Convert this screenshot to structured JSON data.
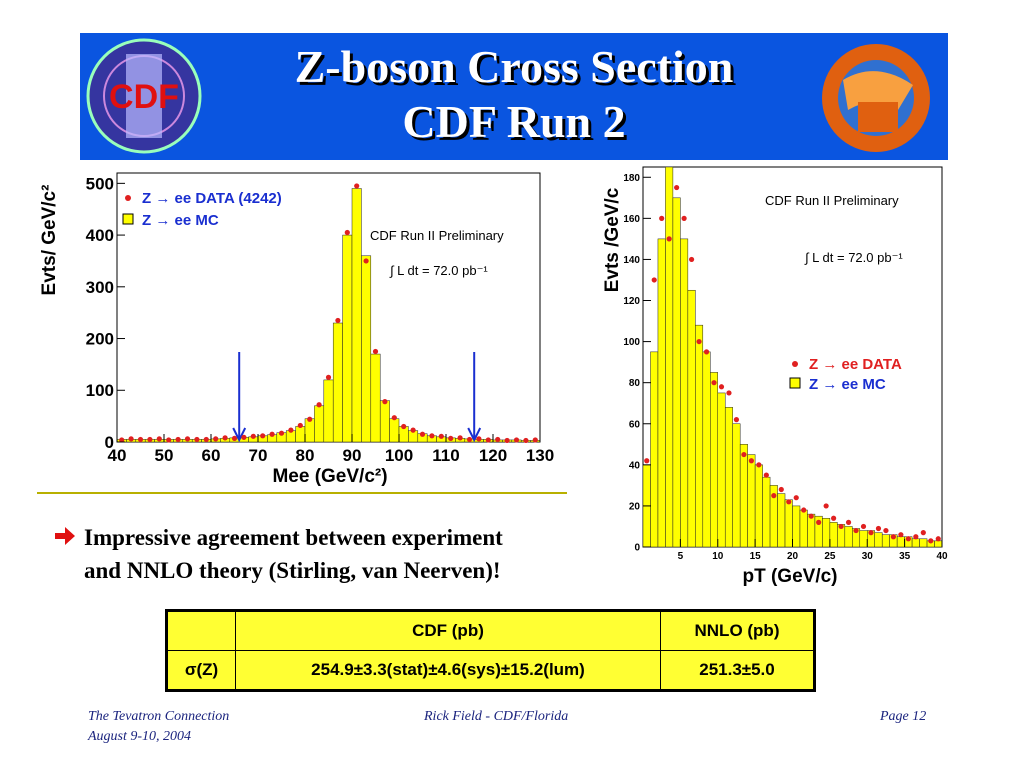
{
  "header": {
    "title_lines": [
      "Z-boson Cross Section",
      "CDF Run 2"
    ],
    "logo_text": "CDF"
  },
  "chart_data": [
    {
      "type": "histogram",
      "ylabel": "Evts/ GeV/c²",
      "xlabel": "Mee (GeV/c²)",
      "annotations": [
        "CDF Run II Preliminary",
        "∫ L dt = 72.0 pb⁻¹"
      ],
      "xlim": [
        40,
        130
      ],
      "ylim": [
        0,
        520
      ],
      "xticks": [
        40,
        50,
        60,
        70,
        80,
        90,
        100,
        110,
        120,
        130
      ],
      "yticks": [
        0,
        100,
        200,
        300,
        400,
        500
      ],
      "bins": [
        40,
        42,
        44,
        46,
        48,
        50,
        52,
        54,
        56,
        58,
        60,
        62,
        64,
        66,
        68,
        70,
        72,
        74,
        76,
        78,
        80,
        82,
        84,
        86,
        88,
        90,
        92,
        94,
        96,
        98,
        100,
        102,
        104,
        106,
        108,
        110,
        112,
        114,
        116,
        118,
        120,
        122,
        124,
        126,
        128,
        130
      ],
      "name": "Z → ee  MC",
      "color": "#ffff00",
      "counts": [
        5,
        5,
        5,
        5,
        5,
        5,
        5,
        5,
        5,
        5,
        6,
        7,
        8,
        9,
        10,
        12,
        14,
        18,
        22,
        30,
        45,
        70,
        120,
        230,
        400,
        490,
        360,
        170,
        80,
        45,
        30,
        22,
        16,
        12,
        10,
        8,
        7,
        6,
        5,
        5,
        4,
        4,
        4,
        3,
        3
      ],
      "points": {
        "name": "Z → ee DATA (4242)",
        "color": "#e02020",
        "values": [
          4,
          6,
          5,
          5,
          6,
          4,
          5,
          6,
          5,
          5,
          6,
          8,
          7,
          9,
          11,
          12,
          15,
          17,
          23,
          32,
          44,
          72,
          125,
          235,
          405,
          495,
          350,
          175,
          78,
          47,
          30,
          23,
          15,
          12,
          11,
          7,
          8,
          5,
          6,
          4,
          5,
          3,
          4,
          3,
          4
        ]
      },
      "cut_markers": [
        66,
        116
      ],
      "cut_color": "#1a2fd0"
    },
    {
      "type": "histogram",
      "ylabel": "Evts /GeV/c",
      "xlabel": "pT (GeV/c)",
      "annotations": [
        "CDF Run II Preliminary",
        "∫ L dt = 72.0 pb⁻¹"
      ],
      "xlim": [
        0,
        40
      ],
      "ylim": [
        0,
        185
      ],
      "xticks": [
        5,
        10,
        15,
        20,
        25,
        30,
        35,
        40
      ],
      "yticks": [
        0,
        20,
        40,
        60,
        80,
        100,
        120,
        140,
        160,
        180
      ],
      "bins": [
        0,
        1,
        2,
        3,
        4,
        5,
        6,
        7,
        8,
        9,
        10,
        11,
        12,
        13,
        14,
        15,
        16,
        17,
        18,
        19,
        20,
        21,
        22,
        23,
        24,
        25,
        26,
        27,
        28,
        29,
        30,
        31,
        32,
        33,
        34,
        35,
        36,
        37,
        38,
        39,
        40
      ],
      "name": "Z → ee  MC",
      "color": "#ffff00",
      "counts": [
        40,
        95,
        150,
        185,
        170,
        150,
        125,
        108,
        95,
        85,
        75,
        68,
        60,
        50,
        45,
        40,
        34,
        30,
        26,
        23,
        20,
        18,
        16,
        15,
        14,
        12,
        11,
        10,
        9,
        8,
        8,
        7,
        6,
        6,
        5,
        5,
        4,
        4,
        3,
        3
      ],
      "points": {
        "name": "Z → ee DATA",
        "color": "#e02020",
        "values": [
          42,
          130,
          160,
          150,
          175,
          160,
          140,
          100,
          95,
          80,
          78,
          75,
          62,
          45,
          42,
          40,
          35,
          25,
          28,
          22,
          24,
          18,
          15,
          12,
          20,
          14,
          10,
          12,
          8,
          10,
          7,
          9,
          8,
          5,
          6,
          4,
          5,
          7,
          3,
          4
        ]
      }
    }
  ],
  "bullet": [
    "Impressive agreement between experiment",
    "and NNLO theory (Stirling, van Neerven)!"
  ],
  "table": {
    "columns": [
      "CDF  (pb)",
      "NNLO (pb)"
    ],
    "rows": [
      [
        "σ(Z)",
        "254.9±3.3(stat)±4.6(sys)±15.2(lum)",
        "251.3±5.0"
      ]
    ]
  },
  "footer": {
    "left": [
      "The Tevatron Connection",
      "August 9-10, 2004"
    ],
    "center": "Rick Field - CDF/Florida",
    "right": "Page 12"
  }
}
